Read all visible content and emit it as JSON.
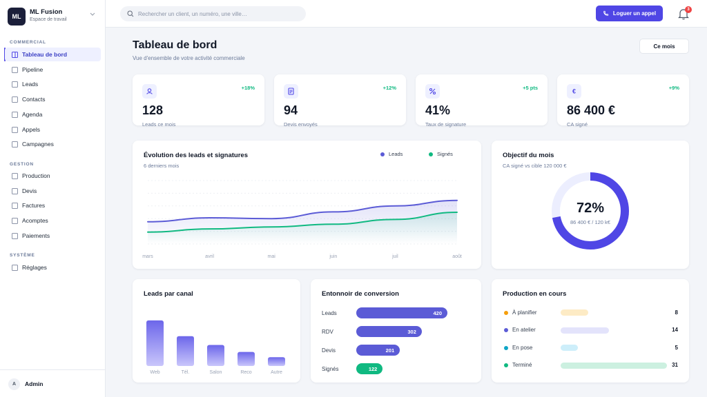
{
  "app": {
    "name": "ML Fusion",
    "workspace": "Espace de travail",
    "logo": "ML"
  },
  "sidebar": {
    "sections": [
      {
        "title": "COMMERCIAL",
        "items": [
          "Tableau de bord",
          "Pipeline",
          "Leads",
          "Contacts",
          "Agenda",
          "Appels",
          "Campagnes"
        ]
      },
      {
        "title": "GESTION",
        "items": [
          "Production",
          "Devis",
          "Factures",
          "Acomptes",
          "Paiements"
        ]
      },
      {
        "title": "SYSTÈME",
        "items": [
          "Réglages"
        ]
      }
    ],
    "active_item": "Tableau de bord",
    "user": {
      "initial": "A",
      "name": "Admin"
    }
  },
  "topbar": {
    "search_placeholder": "Rechercher un client, un numéro, une ville…",
    "call_button": "Loguer un appel",
    "notifications_count": "3"
  },
  "page": {
    "title": "Tableau de bord",
    "subtitle": "Vue d'ensemble de votre activité commerciale",
    "period_button": "Ce mois"
  },
  "kpis": [
    {
      "icon": "user-icon",
      "delta": "+18%",
      "value": "128",
      "label": "Leads ce mois"
    },
    {
      "icon": "document-icon",
      "delta": "+12%",
      "value": "94",
      "label": "Devis envoyés"
    },
    {
      "icon": "percent-icon",
      "delta": "+5 pts",
      "value": "41%",
      "label": "Taux de signature"
    },
    {
      "icon": "euro-icon",
      "delta": "+9%",
      "value": "86 400 €",
      "label": "CA signé"
    }
  ],
  "colors": {
    "accent": "#4f46e5",
    "leads": "#5b5bd6",
    "signes": "#10b981",
    "positive": "#10b981"
  },
  "chart_data": [
    {
      "type": "line",
      "title": "Évolution des leads et signatures",
      "subtitle": "6 derniers mois",
      "categories": [
        "mars",
        "avril",
        "mai",
        "juin",
        "juil",
        "août"
      ],
      "series": [
        {
          "name": "Leads",
          "values": [
            56,
            66,
            64,
            81,
            96,
            110
          ]
        },
        {
          "name": "Signés",
          "values": [
            30,
            38,
            43,
            50,
            62,
            80
          ]
        }
      ],
      "ylim": [
        0,
        160
      ],
      "grid": true,
      "legend": "top-right"
    },
    {
      "type": "pie",
      "title": "Objectif du mois",
      "subtitle": "CA signé vs cible 120 000 €",
      "value_label": "72%",
      "detail": "86 400 € / 120 k€",
      "values": [
        72,
        28
      ]
    },
    {
      "type": "bar",
      "title": "Leads par canal",
      "categories": [
        "Web",
        "Tél.",
        "Salon",
        "Reco",
        "Autre"
      ],
      "values": [
        52,
        34,
        24,
        16,
        10
      ],
      "ylim": [
        0,
        55
      ]
    },
    {
      "type": "bar",
      "title": "Entonnoir de conversion",
      "categories": [
        "Leads",
        "RDV",
        "Devis",
        "Signés"
      ],
      "values": [
        420,
        302,
        201,
        122
      ],
      "max": 420
    },
    {
      "type": "bar",
      "title": "Production en cours",
      "categories": [
        "À planifier",
        "En atelier",
        "En pose",
        "Terminé"
      ],
      "values": [
        8,
        14,
        5,
        31
      ],
      "max": 31,
      "colors": [
        "#f59e0b",
        "#5b5bd6",
        "#0ea5c6",
        "#10b981"
      ]
    }
  ]
}
